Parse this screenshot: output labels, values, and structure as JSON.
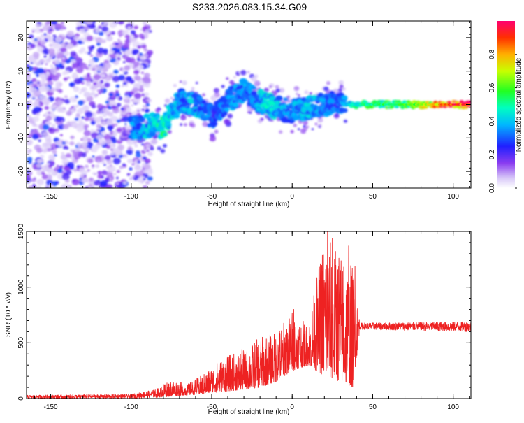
{
  "title": "S233.2026.083.15.34.G09",
  "chart_data": [
    {
      "type": "heatmap",
      "xlabel": "Height of straight line (km)",
      "ylabel": "Frequency (Hz)",
      "xlim": [
        -165,
        111
      ],
      "ylim": [
        -25,
        25
      ],
      "xticks": [
        -150,
        -100,
        -50,
        0,
        50,
        100
      ],
      "yticks": [
        -20,
        -10,
        0,
        10,
        20
      ],
      "colorbar": {
        "label": "Normalized spectral amplitude",
        "range": [
          0,
          1
        ],
        "ticks": [
          "0.0",
          "0.2",
          "0.4",
          "0.6",
          "0.8"
        ],
        "colormap": "rainbow"
      },
      "ridge": [
        {
          "x": -155,
          "y": -8,
          "amp": 0.3
        },
        {
          "x": -95,
          "y": -7,
          "amp": 0.35
        },
        {
          "x": -85,
          "y": -6,
          "amp": 0.45
        },
        {
          "x": -80,
          "y": -7,
          "amp": 0.5
        },
        {
          "x": -75,
          "y": -3,
          "amp": 0.4
        },
        {
          "x": -70,
          "y": 1,
          "amp": 0.35
        },
        {
          "x": -60,
          "y": 0,
          "amp": 0.4
        },
        {
          "x": -55,
          "y": -2,
          "amp": 0.35
        },
        {
          "x": -50,
          "y": -4,
          "amp": 0.3
        },
        {
          "x": -45,
          "y": -2,
          "amp": 0.3
        },
        {
          "x": -40,
          "y": 1,
          "amp": 0.35
        },
        {
          "x": -30,
          "y": 4,
          "amp": 0.35
        },
        {
          "x": -20,
          "y": 1,
          "amp": 0.4
        },
        {
          "x": -15,
          "y": 0,
          "amp": 0.45
        },
        {
          "x": -10,
          "y": -1,
          "amp": 0.4
        },
        {
          "x": 0,
          "y": -2,
          "amp": 0.35
        },
        {
          "x": 10,
          "y": -1,
          "amp": 0.4
        },
        {
          "x": 20,
          "y": 0,
          "amp": 0.35
        },
        {
          "x": 30,
          "y": 1,
          "amp": 0.3
        },
        {
          "x": 35,
          "y": 0,
          "amp": 0.45
        },
        {
          "x": 50,
          "y": 0,
          "amp": 0.55
        },
        {
          "x": 70,
          "y": 0,
          "amp": 0.6
        },
        {
          "x": 90,
          "y": 0,
          "amp": 0.8
        },
        {
          "x": 100,
          "y": 0,
          "amp": 0.95
        },
        {
          "x": 110,
          "y": 0,
          "amp": 0.9
        }
      ]
    },
    {
      "type": "line",
      "xlabel": "Height of straight line (km)",
      "ylabel": "SNR (10 * v/v)",
      "xlim": [
        -165,
        111
      ],
      "ylim": [
        0,
        1500
      ],
      "xticks": [
        -150,
        -100,
        -50,
        0,
        50,
        100
      ],
      "yticks": [
        0,
        500,
        1000,
        1500
      ],
      "color": "#ee2222",
      "envelope": [
        {
          "x": -165,
          "lo": 0,
          "hi": 30
        },
        {
          "x": -100,
          "lo": 0,
          "hi": 40
        },
        {
          "x": -85,
          "lo": 10,
          "hi": 80
        },
        {
          "x": -75,
          "lo": 20,
          "hi": 170
        },
        {
          "x": -65,
          "lo": 30,
          "hi": 130
        },
        {
          "x": -55,
          "lo": 40,
          "hi": 220
        },
        {
          "x": -45,
          "lo": 60,
          "hi": 350
        },
        {
          "x": -30,
          "lo": 80,
          "hi": 450
        },
        {
          "x": -20,
          "lo": 100,
          "hi": 550
        },
        {
          "x": -10,
          "lo": 150,
          "hi": 600
        },
        {
          "x": 0,
          "lo": 250,
          "hi": 800
        },
        {
          "x": 10,
          "lo": 300,
          "hi": 650
        },
        {
          "x": 20,
          "lo": 200,
          "hi": 1500
        },
        {
          "x": 30,
          "lo": 150,
          "hi": 1300
        },
        {
          "x": 38,
          "lo": 100,
          "hi": 1200
        },
        {
          "x": 42,
          "lo": 620,
          "hi": 680
        },
        {
          "x": 111,
          "lo": 600,
          "hi": 690
        }
      ],
      "spikes": [
        {
          "x": 1,
          "y": 800
        },
        {
          "x": 16,
          "y": 900
        },
        {
          "x": 22,
          "y": 1500
        },
        {
          "x": 25,
          "y": 1440
        },
        {
          "x": 29,
          "y": 1260
        },
        {
          "x": 32,
          "y": 1180
        },
        {
          "x": 35,
          "y": 1370
        },
        {
          "x": 39,
          "y": 1190
        }
      ]
    }
  ]
}
